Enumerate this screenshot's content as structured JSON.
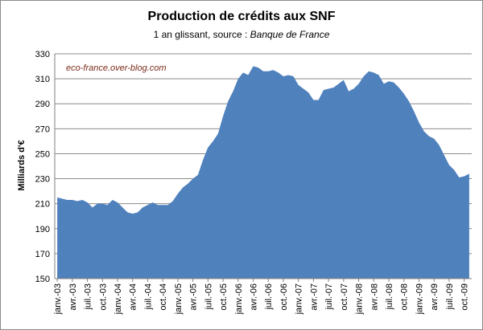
{
  "chart_data": {
    "type": "area",
    "title": "Production de crédits aux SNF",
    "subtitle_prefix": "1 an glissant, source : ",
    "subtitle_source": "Banque de France",
    "ylabel": "Milliards d'€",
    "xlabel": "",
    "watermark": "eco-france.over-blog.com",
    "ylim": [
      150,
      330
    ],
    "yticks": [
      150,
      170,
      190,
      210,
      230,
      250,
      270,
      290,
      310,
      330
    ],
    "grid": true,
    "legend": "none",
    "area_color": "#4f81bd",
    "x_start": "janv.-03",
    "x_tick_step_months": 3,
    "x_tick_labels": [
      "janv.-03",
      "avr.-03",
      "juil.-03",
      "oct.-03",
      "janv.-04",
      "avr.-04",
      "juil.-04",
      "oct.-04",
      "janv.-05",
      "avr.-05",
      "juil.-05",
      "oct.-05",
      "janv.-06",
      "avr.-06",
      "juil.-06",
      "oct.-06",
      "janv.-07",
      "avr.-07",
      "juil.-07",
      "oct.-07",
      "janv.-08",
      "avr.-08",
      "juil.-08",
      "oct.-08",
      "janv.-09",
      "avr.-09",
      "juil.-09",
      "oct.-09"
    ],
    "values": [
      215,
      214,
      213,
      213,
      212,
      213,
      211,
      207,
      210,
      210,
      209,
      213,
      211,
      207,
      203,
      202,
      203,
      207,
      209,
      211,
      209,
      209,
      209,
      212,
      218,
      223,
      226,
      230,
      233,
      245,
      255,
      260,
      266,
      280,
      292,
      300,
      310,
      315,
      313,
      320,
      319,
      316,
      316,
      317,
      315,
      312,
      313,
      312,
      305,
      302,
      299,
      293,
      293,
      301,
      302,
      303,
      306,
      309,
      300,
      302,
      306,
      312,
      316,
      315,
      313,
      306,
      308,
      307,
      303,
      298,
      292,
      284,
      275,
      268,
      264,
      262,
      257,
      249,
      241,
      237,
      231,
      232,
      234
    ]
  }
}
